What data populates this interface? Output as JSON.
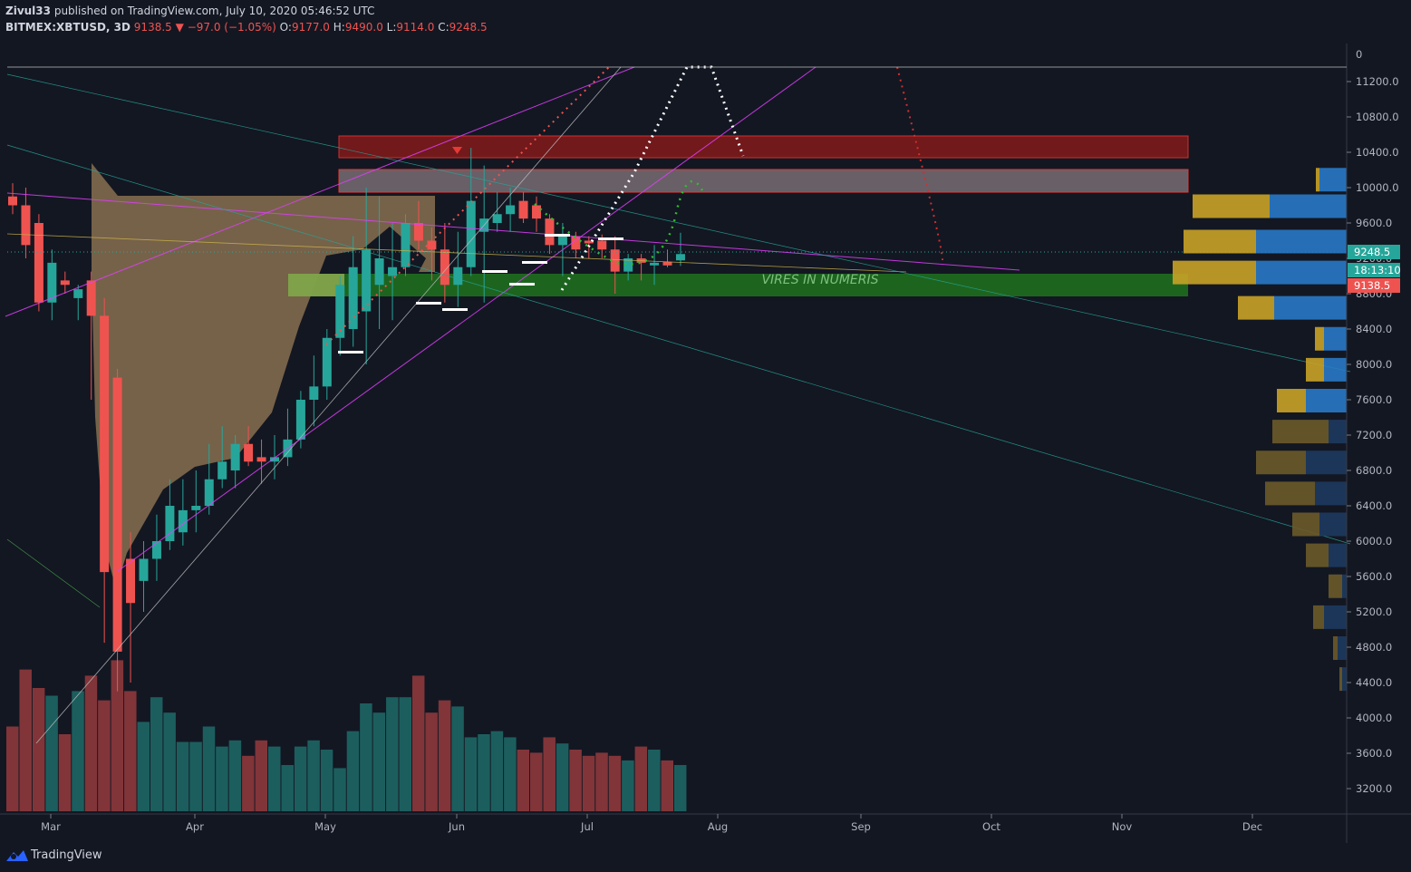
{
  "header": {
    "author": "Zivul33",
    "published_text": "published on TradingView.com, July 10, 2020 05:46:52 UTC",
    "symbol": "BITMEX:XBTUSD, 3D",
    "last": "9138.5",
    "change_arrow": "▼",
    "change": "−97.0 (−1.05%)",
    "o_label": "O:",
    "o_val": "9177.0",
    "h_label": "H:",
    "h_val": "9490.0",
    "l_label": "L:",
    "l_val": "9114.0",
    "c_label": "C:",
    "c_val": "9248.5"
  },
  "footer": {
    "brand": "TradingView",
    "logo_icon": "tradingview-logo-icon"
  },
  "chart_data": {
    "type": "candlestick",
    "symbol": "BITMEX:XBTUSD",
    "timeframe": "3D",
    "colors": {
      "up": "#26a69a",
      "down": "#ef5350",
      "background": "#131722"
    },
    "y_ticks": [
      11200,
      10800,
      10400,
      10000,
      9600,
      9200,
      8800,
      8400,
      8000,
      7600,
      7200,
      6800,
      6400,
      6000,
      5600,
      5200,
      4800,
      4400,
      4000,
      3600,
      3200
    ],
    "y_top_label": "0",
    "x_labels": [
      "Mar",
      "Apr",
      "May",
      "Jun",
      "Jul",
      "Aug",
      "Sep",
      "Oct",
      "Nov",
      "Dec"
    ],
    "price_tags": [
      {
        "text": "9248.5",
        "color": "#26a69a"
      },
      {
        "text": "18:13:10",
        "color": "#26a69a"
      },
      {
        "text": "9138.5",
        "color": "#ef5350"
      }
    ],
    "annotation": "VIRES IN NUMERIS",
    "candles": [
      {
        "o": 9900,
        "h": 10050,
        "l": 9700,
        "c": 9800
      },
      {
        "o": 9800,
        "h": 10000,
        "l": 9200,
        "c": 9350
      },
      {
        "o": 9600,
        "h": 9700,
        "l": 8600,
        "c": 8700
      },
      {
        "o": 8700,
        "h": 9300,
        "l": 8500,
        "c": 9150
      },
      {
        "o": 8950,
        "h": 9050,
        "l": 8800,
        "c": 8900
      },
      {
        "o": 8750,
        "h": 8900,
        "l": 8500,
        "c": 8850
      },
      {
        "o": 8950,
        "h": 9050,
        "l": 7600,
        "c": 8550
      },
      {
        "o": 8550,
        "h": 8750,
        "l": 4850,
        "c": 5650
      },
      {
        "o": 7850,
        "h": 7950,
        "l": 4300,
        "c": 4750
      },
      {
        "o": 5800,
        "h": 6100,
        "l": 4400,
        "c": 5300
      },
      {
        "o": 5550,
        "h": 6000,
        "l": 5200,
        "c": 5800
      },
      {
        "o": 5800,
        "h": 6300,
        "l": 5550,
        "c": 6000
      },
      {
        "o": 6000,
        "h": 6700,
        "l": 5900,
        "c": 6400
      },
      {
        "o": 6100,
        "h": 6700,
        "l": 5950,
        "c": 6350
      },
      {
        "o": 6350,
        "h": 6800,
        "l": 6100,
        "c": 6400
      },
      {
        "o": 6400,
        "h": 7100,
        "l": 6300,
        "c": 6700
      },
      {
        "o": 6700,
        "h": 7300,
        "l": 6600,
        "c": 6900
      },
      {
        "o": 6800,
        "h": 7200,
        "l": 6600,
        "c": 7100
      },
      {
        "o": 7100,
        "h": 7300,
        "l": 6850,
        "c": 6900
      },
      {
        "o": 6950,
        "h": 7150,
        "l": 6650,
        "c": 6900
      },
      {
        "o": 6900,
        "h": 7200,
        "l": 6700,
        "c": 6950
      },
      {
        "o": 6950,
        "h": 7500,
        "l": 6850,
        "c": 7150
      },
      {
        "o": 7150,
        "h": 7700,
        "l": 7050,
        "c": 7600
      },
      {
        "o": 7600,
        "h": 8100,
        "l": 7300,
        "c": 7750
      },
      {
        "o": 7750,
        "h": 8400,
        "l": 7600,
        "c": 8300
      },
      {
        "o": 8300,
        "h": 9000,
        "l": 8100,
        "c": 8900
      },
      {
        "o": 8400,
        "h": 9450,
        "l": 8200,
        "c": 9100
      },
      {
        "o": 8600,
        "h": 10000,
        "l": 8000,
        "c": 9300
      },
      {
        "o": 8900,
        "h": 9900,
        "l": 8400,
        "c": 9200
      },
      {
        "o": 9000,
        "h": 9600,
        "l": 8500,
        "c": 9100
      },
      {
        "o": 9100,
        "h": 9700,
        "l": 9000,
        "c": 9600
      },
      {
        "o": 9600,
        "h": 9850,
        "l": 9300,
        "c": 9400
      },
      {
        "o": 9400,
        "h": 9550,
        "l": 8950,
        "c": 9300
      },
      {
        "o": 9300,
        "h": 9600,
        "l": 8700,
        "c": 8900
      },
      {
        "o": 8900,
        "h": 9500,
        "l": 8650,
        "c": 9100
      },
      {
        "o": 9100,
        "h": 10450,
        "l": 9000,
        "c": 9850
      },
      {
        "o": 9500,
        "h": 10250,
        "l": 8700,
        "c": 9650
      },
      {
        "o": 9600,
        "h": 9950,
        "l": 9500,
        "c": 9700
      },
      {
        "o": 9700,
        "h": 10000,
        "l": 9500,
        "c": 9800
      },
      {
        "o": 9850,
        "h": 9950,
        "l": 9600,
        "c": 9650
      },
      {
        "o": 9800,
        "h": 9900,
        "l": 9500,
        "c": 9650
      },
      {
        "o": 9650,
        "h": 9700,
        "l": 9250,
        "c": 9350
      },
      {
        "o": 9350,
        "h": 9600,
        "l": 9000,
        "c": 9450
      },
      {
        "o": 9450,
        "h": 9500,
        "l": 9200,
        "c": 9300
      },
      {
        "o": 9400,
        "h": 9450,
        "l": 9200,
        "c": 9370
      },
      {
        "o": 9400,
        "h": 9470,
        "l": 9200,
        "c": 9300
      },
      {
        "o": 9300,
        "h": 9450,
        "l": 8800,
        "c": 9050
      },
      {
        "o": 9050,
        "h": 9250,
        "l": 8950,
        "c": 9200
      },
      {
        "o": 9200,
        "h": 9250,
        "l": 8950,
        "c": 9150
      },
      {
        "o": 9120,
        "h": 9350,
        "l": 8900,
        "c": 9150
      },
      {
        "o": 9160,
        "h": 9300,
        "l": 9100,
        "c": 9120
      },
      {
        "o": 9177,
        "h": 9490,
        "l": 9114,
        "c": 9248.5
      }
    ],
    "volume": [
      55,
      92,
      80,
      75,
      50,
      78,
      88,
      72,
      98,
      78,
      58,
      74,
      64,
      45,
      45,
      55,
      42,
      46,
      36,
      46,
      42,
      30,
      42,
      46,
      40,
      28,
      52,
      70,
      64,
      74,
      74,
      88,
      64,
      72,
      68,
      48,
      50,
      52,
      48,
      40,
      38,
      48,
      44,
      40,
      36,
      38,
      36,
      33,
      42,
      40,
      33,
      30
    ]
  }
}
